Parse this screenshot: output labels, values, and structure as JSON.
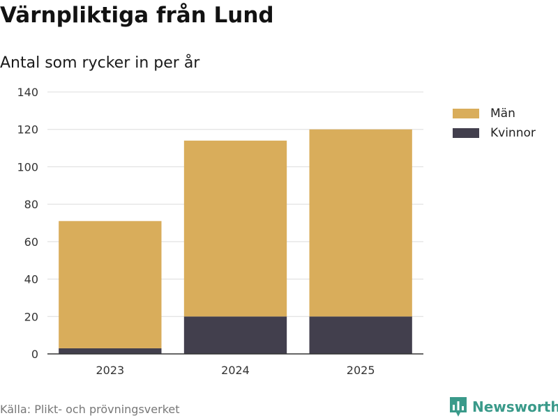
{
  "header": {
    "title": "Värnpliktiga från Lund",
    "subtitle": "Antal som rycker in per år"
  },
  "footer": {
    "source": "Källa: Plikt- och prövningsverket",
    "brand": "Newsworthy"
  },
  "colors": {
    "man": "#d9ad5b",
    "kvinnor": "#423f4d",
    "grid": "#dcdcdc",
    "axis": "#333333",
    "brand": "#3a9a8a"
  },
  "legend": [
    {
      "label": "Män",
      "color": "#d9ad5b"
    },
    {
      "label": "Kvinnor",
      "color": "#423f4d"
    }
  ],
  "chart_data": {
    "type": "bar",
    "stacked": true,
    "title": "Värnpliktiga från Lund",
    "subtitle": "Antal som rycker in per år",
    "categories": [
      "2023",
      "2024",
      "2025"
    ],
    "series": [
      {
        "name": "Kvinnor",
        "values": [
          3,
          20,
          20
        ]
      },
      {
        "name": "Män",
        "values": [
          68,
          94,
          100
        ]
      }
    ],
    "yticks": [
      0,
      20,
      40,
      60,
      80,
      100,
      120,
      140
    ],
    "ylim": [
      0,
      140
    ],
    "xlabel": "",
    "ylabel": "",
    "grid": true,
    "legend_position": "top-right"
  }
}
